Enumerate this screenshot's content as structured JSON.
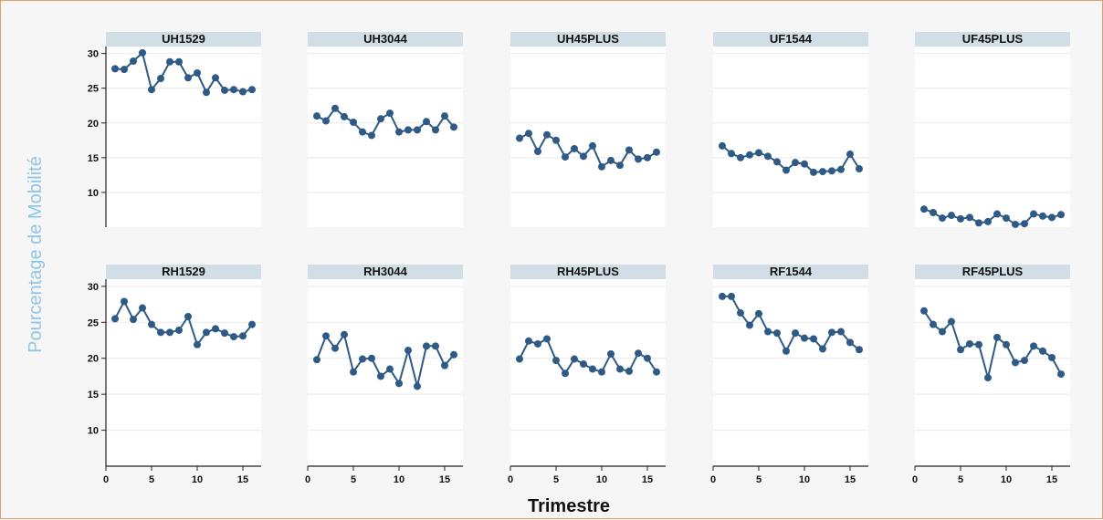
{
  "chart_data": {
    "type": "line",
    "xlabel": "Trimestre",
    "ylabel": "Pourcentage de Mobilité",
    "x": [
      1,
      2,
      3,
      4,
      5,
      6,
      7,
      8,
      9,
      10,
      11,
      12,
      13,
      14,
      15,
      16
    ],
    "xlim": [
      0,
      17
    ],
    "ylim": [
      5,
      31
    ],
    "xticks": [
      0,
      5,
      10,
      15
    ],
    "yticks": [
      10,
      15,
      20,
      25,
      30
    ],
    "grid": true,
    "series_color": "#2f5a86",
    "panels": [
      {
        "name": "UH1529",
        "values": [
          27.8,
          27.7,
          28.9,
          30.1,
          24.8,
          26.4,
          28.8,
          28.8,
          26.5,
          27.2,
          24.4,
          26.5,
          24.7,
          24.8,
          24.5,
          24.8
        ]
      },
      {
        "name": "UH3044",
        "values": [
          21.0,
          20.3,
          22.1,
          20.9,
          20.1,
          18.7,
          18.2,
          20.6,
          21.4,
          18.7,
          19.0,
          19.0,
          20.2,
          19.0,
          21.0,
          19.4
        ]
      },
      {
        "name": "UH45PLUS",
        "values": [
          17.8,
          18.5,
          15.9,
          18.3,
          17.5,
          15.1,
          16.3,
          15.2,
          16.7,
          13.7,
          14.6,
          13.9,
          16.1,
          14.8,
          15.0,
          15.8
        ]
      },
      {
        "name": "UF1544",
        "values": [
          16.7,
          15.6,
          15.0,
          15.4,
          15.7,
          15.2,
          14.4,
          13.2,
          14.3,
          14.1,
          12.9,
          13.0,
          13.1,
          13.3,
          15.5,
          13.4
        ]
      },
      {
        "name": "UF45PLUS",
        "values": [
          7.6,
          7.1,
          6.3,
          6.7,
          6.2,
          6.4,
          5.6,
          5.8,
          6.9,
          6.3,
          5.4,
          5.5,
          6.9,
          6.6,
          6.4,
          6.8
        ]
      },
      {
        "name": "RH1529",
        "values": [
          25.5,
          27.9,
          25.4,
          27.0,
          24.7,
          23.6,
          23.6,
          23.9,
          25.8,
          21.9,
          23.6,
          24.1,
          23.5,
          23.0,
          23.1,
          24.7
        ]
      },
      {
        "name": "RH3044",
        "values": [
          19.8,
          23.1,
          21.4,
          23.3,
          18.1,
          19.9,
          20.0,
          17.5,
          18.5,
          16.5,
          21.1,
          16.1,
          21.7,
          21.7,
          19.0,
          20.5
        ]
      },
      {
        "name": "RH45PLUS",
        "values": [
          19.9,
          22.4,
          22.0,
          22.7,
          19.7,
          17.9,
          19.9,
          19.2,
          18.5,
          18.1,
          20.6,
          18.5,
          18.2,
          20.7,
          20.0,
          18.1
        ]
      },
      {
        "name": "RF1544",
        "values": [
          28.6,
          28.6,
          26.3,
          24.6,
          26.2,
          23.7,
          23.5,
          21.0,
          23.5,
          22.8,
          22.7,
          21.3,
          23.6,
          23.7,
          22.2,
          21.2
        ]
      },
      {
        "name": "RF45PLUS",
        "values": [
          26.6,
          24.7,
          23.7,
          25.1,
          21.2,
          22.0,
          21.9,
          17.3,
          22.9,
          21.9,
          19.4,
          19.7,
          21.7,
          21.0,
          20.1,
          17.8
        ]
      }
    ]
  }
}
